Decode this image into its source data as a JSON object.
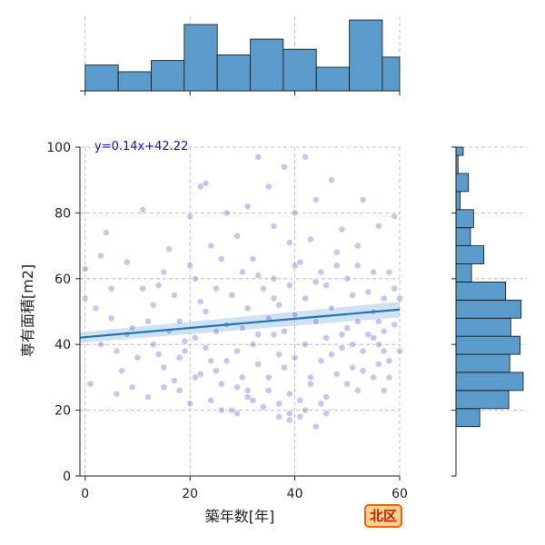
{
  "badge": {
    "label": "北区"
  },
  "chart_data": {
    "type": "scatter",
    "xlabel": "築年数[年]",
    "ylabel": "専有面積[m2]",
    "xlim": [
      -1,
      60
    ],
    "ylim": [
      0,
      100
    ],
    "x_ticks": [
      0,
      20,
      40,
      60
    ],
    "y_ticks": [
      0,
      20,
      40,
      60,
      80,
      100
    ],
    "grid": true,
    "regression": {
      "label": "y=0.14x+42.22",
      "slope": 0.14,
      "intercept": 42.22,
      "x_range": [
        -1,
        60
      ]
    },
    "colors": {
      "scatter": "#4a55c8",
      "line": "#1f77b4",
      "hist": "#5b9bcb",
      "band": "#a9cbe6"
    },
    "points": [
      [
        0,
        54
      ],
      [
        0,
        63
      ],
      [
        1,
        28
      ],
      [
        2,
        51
      ],
      [
        3,
        67
      ],
      [
        4,
        74
      ],
      [
        5,
        48
      ],
      [
        5,
        57
      ],
      [
        6,
        25
      ],
      [
        7,
        32
      ],
      [
        8,
        43
      ],
      [
        8,
        65
      ],
      [
        9,
        27
      ],
      [
        10,
        36
      ],
      [
        11,
        81
      ],
      [
        12,
        47
      ],
      [
        12,
        24
      ],
      [
        13,
        52
      ],
      [
        14,
        37
      ],
      [
        14,
        58
      ],
      [
        15,
        62
      ],
      [
        15,
        33
      ],
      [
        16,
        69
      ],
      [
        16,
        44
      ],
      [
        17,
        29
      ],
      [
        17,
        55
      ],
      [
        18,
        47
      ],
      [
        18,
        26
      ],
      [
        19,
        41
      ],
      [
        19,
        38
      ],
      [
        20,
        79
      ],
      [
        20,
        64
      ],
      [
        20,
        22
      ],
      [
        21,
        60
      ],
      [
        21,
        42
      ],
      [
        22,
        88
      ],
      [
        22,
        31
      ],
      [
        22,
        53
      ],
      [
        23,
        89
      ],
      [
        23,
        50
      ],
      [
        24,
        70
      ],
      [
        24,
        35
      ],
      [
        24,
        23
      ],
      [
        25,
        57
      ],
      [
        25,
        44
      ],
      [
        26,
        66
      ],
      [
        26,
        28
      ],
      [
        27,
        80
      ],
      [
        27,
        46
      ],
      [
        28,
        20
      ],
      [
        28,
        55
      ],
      [
        29,
        73
      ],
      [
        29,
        38
      ],
      [
        30,
        62
      ],
      [
        30,
        30
      ],
      [
        30,
        45
      ],
      [
        31,
        82
      ],
      [
        31,
        51
      ],
      [
        31,
        26
      ],
      [
        32,
        40
      ],
      [
        32,
        66
      ],
      [
        33,
        97
      ],
      [
        33,
        34
      ],
      [
        34,
        57
      ],
      [
        34,
        21
      ],
      [
        35,
        88
      ],
      [
        35,
        48
      ],
      [
        35,
        30
      ],
      [
        36,
        76
      ],
      [
        36,
        43
      ],
      [
        36,
        60
      ],
      [
        37,
        22
      ],
      [
        37,
        52
      ],
      [
        38,
        94
      ],
      [
        38,
        33
      ],
      [
        38,
        44
      ],
      [
        39,
        71
      ],
      [
        39,
        25
      ],
      [
        39,
        58
      ],
      [
        40,
        80
      ],
      [
        40,
        36
      ],
      [
        40,
        49
      ],
      [
        41,
        65
      ],
      [
        41,
        18
      ],
      [
        42,
        97
      ],
      [
        42,
        40
      ],
      [
        42,
        54
      ],
      [
        43,
        28
      ],
      [
        43,
        72
      ],
      [
        44,
        84
      ],
      [
        44,
        47
      ],
      [
        45,
        35
      ],
      [
        45,
        62
      ],
      [
        46,
        58
      ],
      [
        46,
        24
      ],
      [
        46,
        42
      ],
      [
        47,
        90
      ],
      [
        47,
        51
      ],
      [
        48,
        31
      ],
      [
        48,
        68
      ],
      [
        49,
        75
      ],
      [
        49,
        39
      ],
      [
        50,
        45
      ],
      [
        50,
        28
      ],
      [
        50,
        60
      ],
      [
        51,
        55
      ],
      [
        51,
        33
      ],
      [
        52,
        64
      ],
      [
        52,
        47
      ],
      [
        52,
        26
      ],
      [
        53,
        84
      ],
      [
        53,
        38
      ],
      [
        54,
        56
      ],
      [
        54,
        43
      ],
      [
        55,
        62
      ],
      [
        55,
        30
      ],
      [
        55,
        50
      ],
      [
        56,
        47
      ],
      [
        56,
        34
      ],
      [
        56,
        40
      ],
      [
        57,
        38
      ],
      [
        57,
        54
      ],
      [
        57,
        44
      ],
      [
        58,
        35
      ],
      [
        58,
        30
      ],
      [
        59,
        57
      ],
      [
        59,
        46
      ],
      [
        59,
        79
      ],
      [
        60,
        54
      ],
      [
        60,
        38
      ],
      [
        3,
        40
      ],
      [
        6,
        38
      ],
      [
        9,
        45
      ],
      [
        11,
        57
      ],
      [
        13,
        40
      ],
      [
        15,
        27
      ],
      [
        18,
        36
      ],
      [
        21,
        30
      ],
      [
        23,
        39
      ],
      [
        25,
        32
      ],
      [
        27,
        35
      ],
      [
        29,
        27
      ],
      [
        31,
        24
      ],
      [
        33,
        43
      ],
      [
        35,
        26
      ],
      [
        37,
        37
      ],
      [
        39,
        19
      ],
      [
        41,
        23
      ],
      [
        43,
        30
      ],
      [
        45,
        22
      ],
      [
        47,
        37
      ],
      [
        49,
        43
      ],
      [
        51,
        40
      ],
      [
        53,
        32
      ],
      [
        55,
        42
      ],
      [
        57,
        26
      ],
      [
        26,
        20
      ],
      [
        29,
        19
      ],
      [
        32,
        23
      ],
      [
        37,
        18
      ],
      [
        39,
        17
      ],
      [
        42,
        20
      ],
      [
        44,
        15
      ],
      [
        46,
        19
      ],
      [
        33,
        61
      ],
      [
        36,
        54
      ],
      [
        40,
        64
      ],
      [
        44,
        59
      ],
      [
        48,
        64
      ],
      [
        52,
        70
      ],
      [
        56,
        76
      ],
      [
        58,
        62
      ]
    ],
    "top_hist": {
      "bins": [
        0,
        6.3,
        12.6,
        18.9,
        25.2,
        31.5,
        37.8,
        44.1,
        50.4,
        56.7,
        63
      ],
      "counts": [
        2.3,
        1.7,
        2.7,
        5.9,
        3.2,
        4.6,
        3.7,
        2.1,
        6.3,
        3.0
      ]
    },
    "right_hist": {
      "bins": [
        15,
        20.5,
        26,
        31.5,
        37,
        42.5,
        48,
        53.5,
        59,
        64.5,
        70,
        75.5,
        81,
        86.5,
        92,
        97.5,
        103
      ],
      "counts": [
        2.3,
        5.1,
        6.5,
        5.2,
        6.2,
        5.3,
        6.3,
        4.8,
        1.5,
        2.7,
        1.4,
        1.7,
        0.4,
        1.2,
        0.2,
        0.7
      ]
    }
  }
}
